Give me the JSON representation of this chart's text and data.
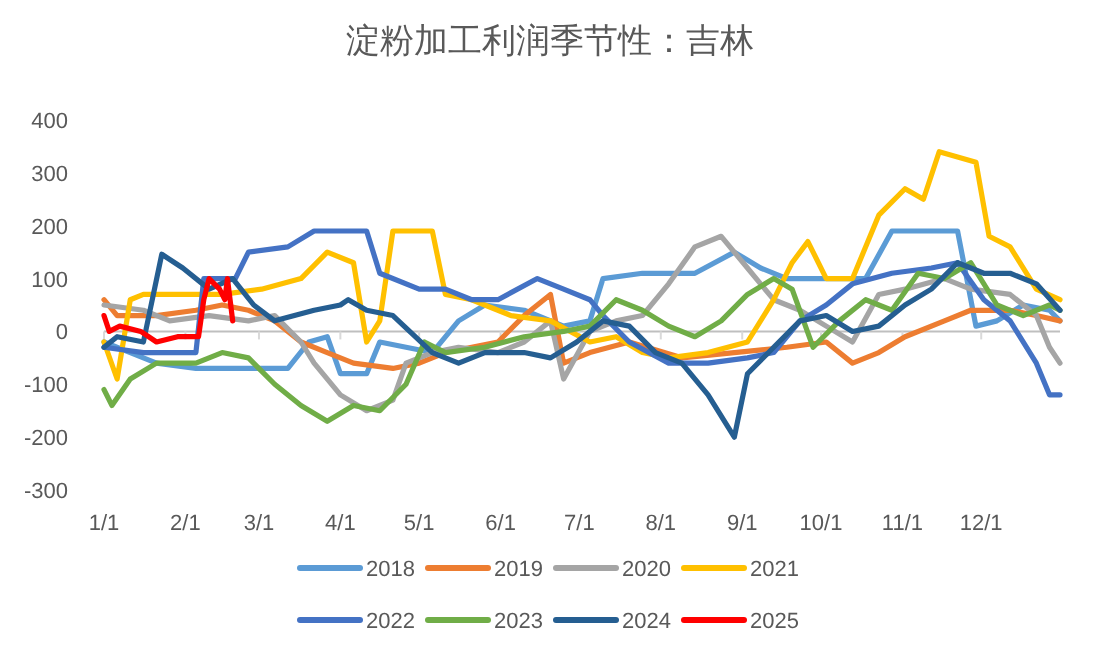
{
  "chart_data": {
    "type": "line",
    "title": "淀粉加工利润季节性：吉林",
    "xlim": [
      "--01-01",
      "--12-31"
    ],
    "xticks": [
      {
        "value": "--01-01",
        "label": "1/1"
      },
      {
        "value": "--02-01",
        "label": "2/1"
      },
      {
        "value": "--03-01",
        "label": "3/1"
      },
      {
        "value": "--04-01",
        "label": "4/1"
      },
      {
        "value": "--05-01",
        "label": "5/1"
      },
      {
        "value": "--06-01",
        "label": "6/1"
      },
      {
        "value": "--07-01",
        "label": "7/1"
      },
      {
        "value": "--08-01",
        "label": "8/1"
      },
      {
        "value": "--09-01",
        "label": "9/1"
      },
      {
        "value": "--10-01",
        "label": "10/1"
      },
      {
        "value": "--11-01",
        "label": "11/1"
      },
      {
        "value": "--12-01",
        "label": "12/1"
      }
    ],
    "ylim": [
      -300,
      400
    ],
    "yticks": [
      -300,
      -200,
      -100,
      0,
      100,
      200,
      300,
      400
    ],
    "legend": "bottom",
    "line_style": "solid",
    "marker": "none",
    "series": [
      {
        "name": "2018",
        "color": "#5b9bd5",
        "x": [
          "--01-01",
          "--01-11",
          "--01-21",
          "--02-05",
          "--02-25",
          "--03-12",
          "--03-20",
          "--03-27",
          "--04-01",
          "--04-11",
          "--04-16",
          "--04-26",
          "--05-06",
          "--05-16",
          "--05-26",
          "--06-10",
          "--06-25",
          "--07-05",
          "--07-10",
          "--07-25",
          "--08-14",
          "--08-29",
          "--09-08",
          "--09-18",
          "--10-08",
          "--10-18",
          "--10-28",
          "--11-12",
          "--11-22",
          "--11-29",
          "--12-07",
          "--12-17",
          "--12-27",
          "--12-31"
        ],
        "values": [
          -20,
          -40,
          -60,
          -70,
          -70,
          -70,
          -20,
          -10,
          -80,
          -80,
          -20,
          -30,
          -40,
          20,
          50,
          40,
          10,
          20,
          100,
          110,
          110,
          150,
          120,
          100,
          100,
          100,
          190,
          190,
          190,
          10,
          20,
          50,
          40,
          20
        ]
      },
      {
        "name": "2019",
        "color": "#ed7d31",
        "x": [
          "--01-01",
          "--01-06",
          "--01-21",
          "--02-05",
          "--02-15",
          "--02-25",
          "--03-07",
          "--03-17",
          "--03-27",
          "--04-06",
          "--04-21",
          "--05-01",
          "--05-11",
          "--05-21",
          "--05-31",
          "--06-10",
          "--06-20",
          "--06-25",
          "--07-05",
          "--07-20",
          "--08-09",
          "--08-29",
          "--09-18",
          "--10-03",
          "--10-13",
          "--10-23",
          "--11-02",
          "--11-17",
          "--11-27",
          "--12-12",
          "--12-22",
          "--12-31"
        ],
        "values": [
          60,
          30,
          30,
          40,
          50,
          40,
          20,
          -20,
          -40,
          -60,
          -70,
          -60,
          -40,
          -30,
          -20,
          30,
          70,
          -60,
          -40,
          -20,
          -50,
          -40,
          -30,
          -20,
          -60,
          -40,
          -10,
          20,
          40,
          40,
          30,
          20
        ]
      },
      {
        "name": "2020",
        "color": "#a5a5a5",
        "x": [
          "--01-01",
          "--01-16",
          "--01-26",
          "--02-10",
          "--02-25",
          "--03-07",
          "--03-17",
          "--03-22",
          "--04-01",
          "--04-11",
          "--04-21",
          "--04-26",
          "--05-06",
          "--05-16",
          "--05-31",
          "--06-10",
          "--06-20",
          "--06-25",
          "--07-05",
          "--07-15",
          "--07-25",
          "--08-04",
          "--08-14",
          "--08-24",
          "--09-03",
          "--09-13",
          "--09-23",
          "--10-03",
          "--10-13",
          "--10-23",
          "--11-02",
          "--11-17",
          "--11-27",
          "--12-12",
          "--12-22",
          "--12-27",
          "--12-31"
        ],
        "values": [
          50,
          40,
          20,
          30,
          20,
          30,
          -20,
          -60,
          -120,
          -150,
          -130,
          -60,
          -40,
          -30,
          -40,
          -20,
          20,
          -90,
          0,
          20,
          30,
          90,
          160,
          180,
          120,
          60,
          40,
          10,
          -20,
          70,
          80,
          100,
          80,
          70,
          30,
          -30,
          -60
        ]
      },
      {
        "name": "2021",
        "color": "#ffc000",
        "x": [
          "--01-01",
          "--01-06",
          "--01-11",
          "--01-16",
          "--01-31",
          "--02-15",
          "--03-02",
          "--03-17",
          "--03-27",
          "--04-06",
          "--04-11",
          "--04-16",
          "--04-21",
          "--05-06",
          "--05-11",
          "--05-21",
          "--06-05",
          "--06-20",
          "--07-05",
          "--07-15",
          "--07-25",
          "--08-04",
          "--08-19",
          "--09-03",
          "--09-13",
          "--09-20",
          "--09-26",
          "--10-03",
          "--10-13",
          "--10-23",
          "--11-02",
          "--11-09",
          "--11-15",
          "--11-29",
          "--12-04",
          "--12-12",
          "--12-22",
          "--12-31"
        ],
        "values": [
          -20,
          -90,
          60,
          70,
          70,
          70,
          80,
          100,
          150,
          130,
          -20,
          20,
          190,
          190,
          70,
          60,
          30,
          20,
          -20,
          -10,
          -40,
          -50,
          -40,
          -20,
          60,
          130,
          170,
          100,
          100,
          220,
          270,
          250,
          340,
          320,
          180,
          160,
          80,
          60
        ]
      },
      {
        "name": "2022",
        "color": "#4472c4",
        "x": [
          "--01-01",
          "--01-16",
          "--01-31",
          "--02-05",
          "--02-08",
          "--02-20",
          "--02-25",
          "--03-12",
          "--03-22",
          "--04-11",
          "--04-16",
          "--05-01",
          "--05-11",
          "--05-21",
          "--05-31",
          "--06-15",
          "--06-25",
          "--07-05",
          "--07-10",
          "--07-20",
          "--08-04",
          "--08-19",
          "--09-03",
          "--09-13",
          "--09-23",
          "--10-03",
          "--10-13",
          "--10-28",
          "--11-12",
          "--11-22",
          "--12-02",
          "--12-12",
          "--12-22",
          "--12-27",
          "--12-31"
        ],
        "values": [
          -30,
          -40,
          -40,
          -40,
          100,
          100,
          150,
          160,
          190,
          190,
          110,
          80,
          80,
          60,
          60,
          100,
          80,
          60,
          30,
          -20,
          -60,
          -60,
          -50,
          -40,
          20,
          50,
          90,
          110,
          120,
          130,
          60,
          20,
          -60,
          -120,
          -120
        ]
      },
      {
        "name": "2023",
        "color": "#70ad47",
        "x": [
          "--01-01",
          "--01-04",
          "--01-11",
          "--01-21",
          "--02-05",
          "--02-15",
          "--02-25",
          "--03-07",
          "--03-17",
          "--03-27",
          "--04-06",
          "--04-16",
          "--04-26",
          "--05-03",
          "--05-11",
          "--05-26",
          "--06-10",
          "--06-25",
          "--07-05",
          "--07-15",
          "--07-25",
          "--08-04",
          "--08-14",
          "--08-24",
          "--09-03",
          "--09-13",
          "--09-20",
          "--09-28",
          "--10-08",
          "--10-18",
          "--10-28",
          "--11-07",
          "--11-17",
          "--11-27",
          "--12-07",
          "--12-17",
          "--12-27",
          "--12-31"
        ],
        "values": [
          -110,
          -140,
          -90,
          -60,
          -60,
          -40,
          -50,
          -100,
          -140,
          -170,
          -140,
          -150,
          -100,
          -20,
          -40,
          -30,
          -10,
          0,
          10,
          60,
          40,
          10,
          -10,
          20,
          70,
          100,
          80,
          -30,
          20,
          60,
          40,
          110,
          100,
          130,
          50,
          30,
          50,
          40
        ]
      },
      {
        "name": "2024",
        "color": "#255e91",
        "x": [
          "--01-01",
          "--01-06",
          "--01-16",
          "--01-23",
          "--01-31",
          "--02-10",
          "--02-19",
          "--02-27",
          "--03-07",
          "--03-22",
          "--04-01",
          "--04-04",
          "--04-11",
          "--04-21",
          "--05-06",
          "--05-16",
          "--05-26",
          "--06-10",
          "--06-20",
          "--06-30",
          "--07-10",
          "--07-20",
          "--07-30",
          "--08-09",
          "--08-19",
          "--08-29",
          "--09-03",
          "--09-13",
          "--09-23",
          "--10-03",
          "--10-13",
          "--10-23",
          "--11-02",
          "--11-12",
          "--11-22",
          "--12-02",
          "--12-12",
          "--12-22",
          "--12-31"
        ],
        "values": [
          -30,
          -10,
          -20,
          146,
          120,
          80,
          100,
          50,
          20,
          40,
          50,
          60,
          40,
          30,
          -40,
          -60,
          -40,
          -40,
          -50,
          -20,
          20,
          10,
          -40,
          -60,
          -120,
          -200,
          -80,
          -30,
          20,
          30,
          0,
          10,
          50,
          80,
          130,
          110,
          110,
          90,
          40
        ]
      },
      {
        "name": "2025",
        "color": "#ff0000",
        "x": [
          "--01-01",
          "--01-03",
          "--01-07",
          "--01-15",
          "--01-21",
          "--01-29",
          "--02-06",
          "--02-08",
          "--02-10",
          "--02-14",
          "--02-16",
          "--02-17",
          "--02-19"
        ],
        "values": [
          30,
          0,
          10,
          0,
          -20,
          -10,
          -10,
          60,
          100,
          80,
          60,
          100,
          20
        ]
      }
    ]
  }
}
